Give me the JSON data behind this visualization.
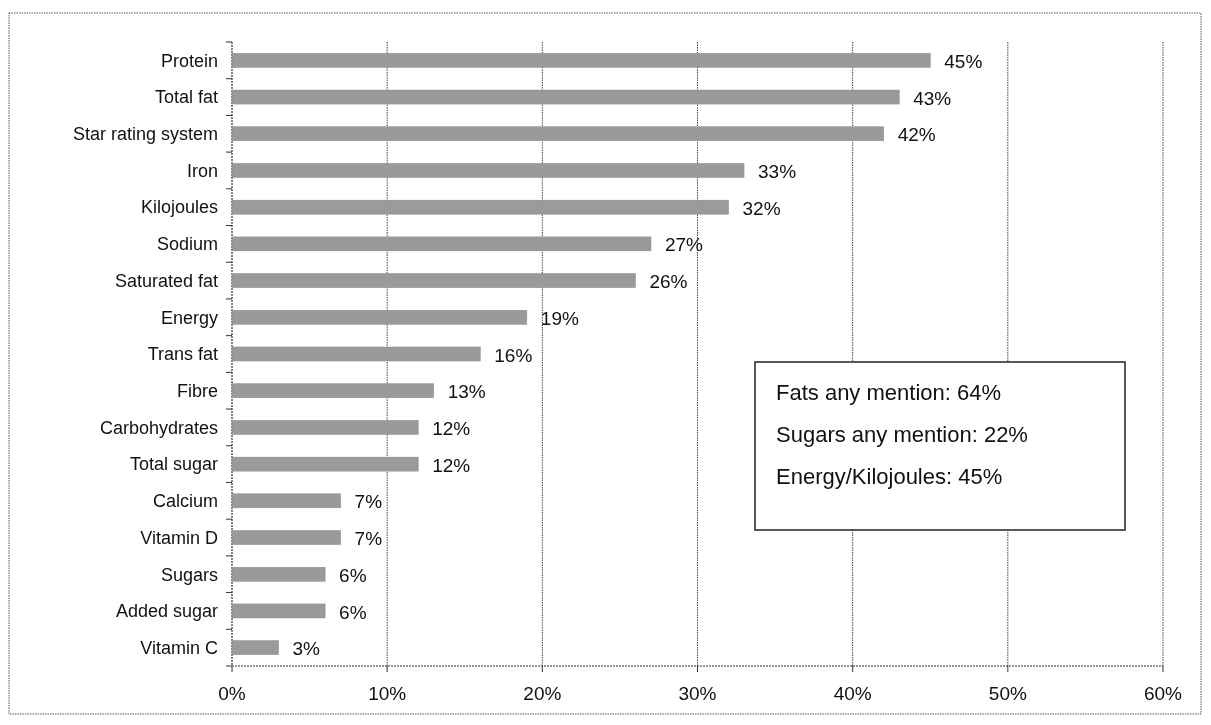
{
  "chart_data": {
    "type": "bar",
    "orientation": "horizontal",
    "categories": [
      "Protein",
      "Total fat",
      "Star rating system",
      "Iron",
      "Kilojoules",
      "Sodium",
      "Saturated fat",
      "Energy",
      "Trans fat",
      "Fibre",
      "Carbohydrates",
      "Total sugar",
      "Calcium",
      "Vitamin D",
      "Sugars",
      "Added sugar",
      "Vitamin C"
    ],
    "values": [
      45,
      43,
      42,
      33,
      32,
      27,
      26,
      19,
      16,
      13,
      12,
      12,
      7,
      7,
      6,
      6,
      3
    ],
    "value_labels": [
      "45%",
      "43%",
      "42%",
      "33%",
      "32%",
      "27%",
      "26%",
      "19%",
      "16%",
      "13%",
      "12%",
      "12%",
      "7%",
      "7%",
      "6%",
      "6%",
      "3%"
    ],
    "color": "#9a9a9a",
    "xlim": [
      0,
      60
    ],
    "xticks": [
      {
        "value": 0,
        "label": "0%"
      },
      {
        "value": 10,
        "label": "10%"
      },
      {
        "value": 20,
        "label": "20%"
      },
      {
        "value": 30,
        "label": "30%"
      },
      {
        "value": 40,
        "label": "40%"
      },
      {
        "value": 50,
        "label": "50%"
      },
      {
        "value": 60,
        "label": "60%"
      }
    ],
    "grid": "x",
    "annotations": [
      "Fats any mention: 64%",
      "Sugars any mention: 22%",
      "Energy/Kilojoules: 45%"
    ]
  }
}
